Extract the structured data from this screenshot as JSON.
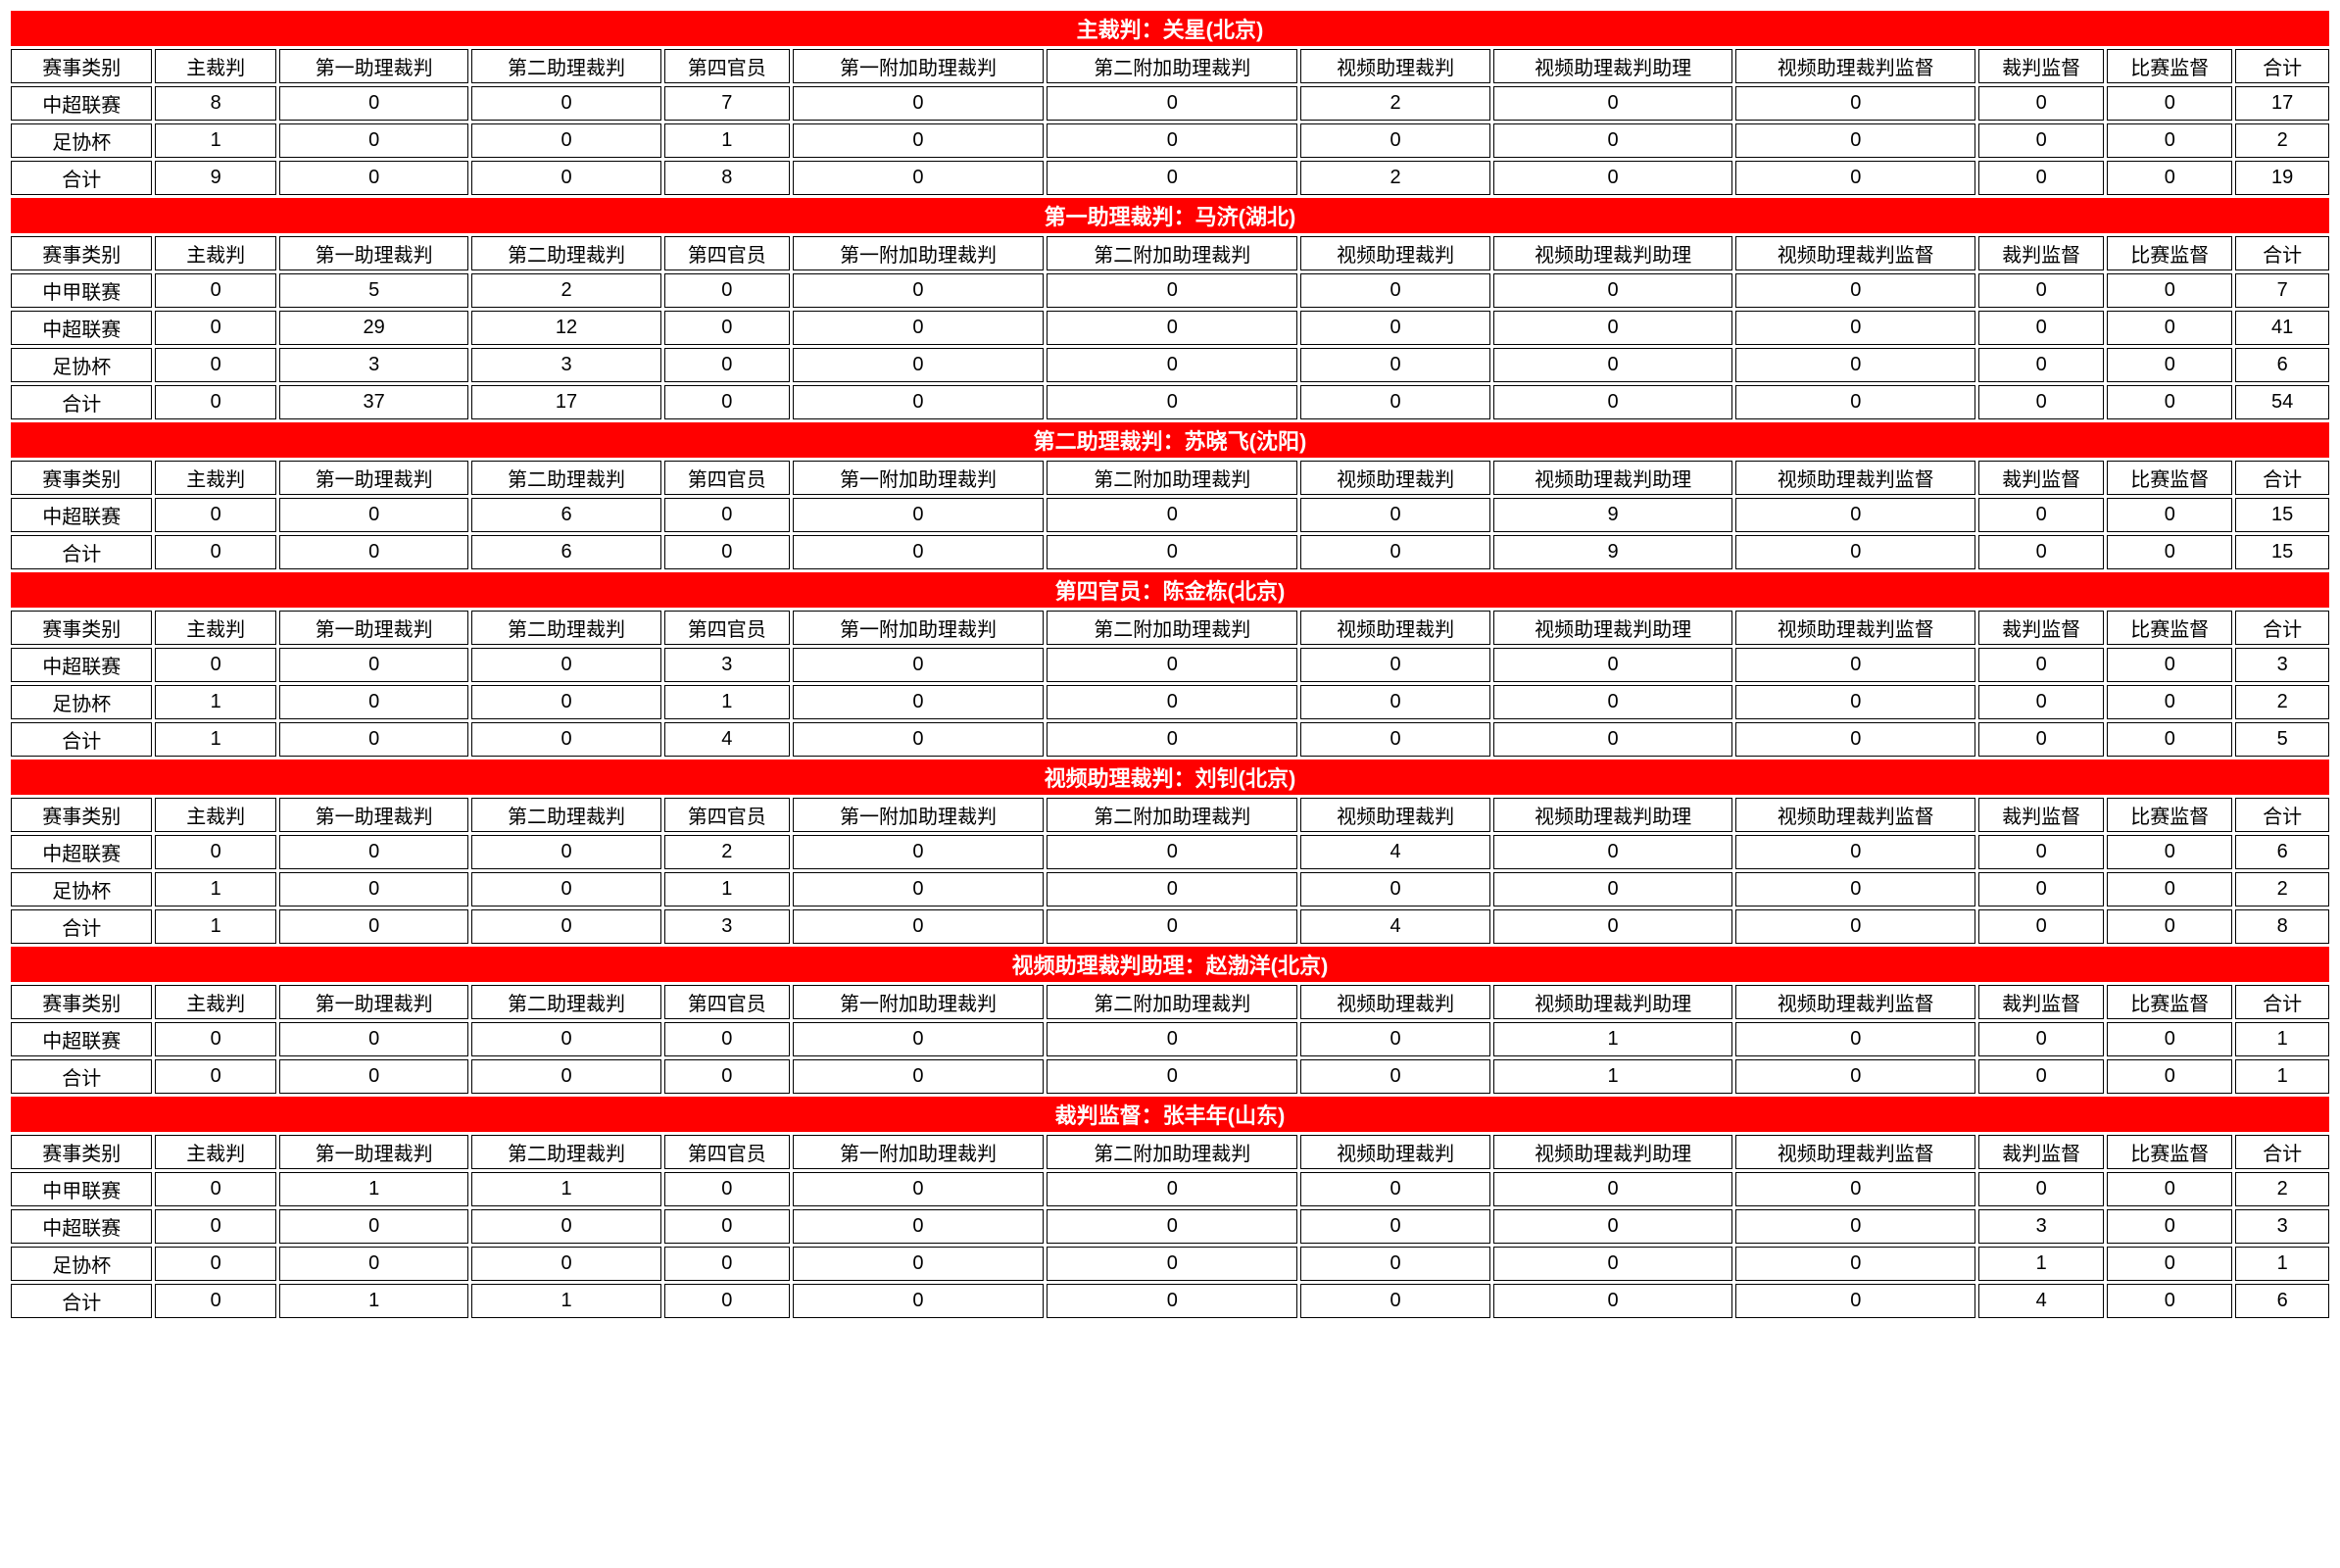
{
  "columns": [
    "赛事类别",
    "主裁判",
    "第一助理裁判",
    "第二助理裁判",
    "第四官员",
    "第一附加助理裁判",
    "第二附加助理裁判",
    "视频助理裁判",
    "视频助理裁判助理",
    "视频助理裁判监督",
    "裁判监督",
    "比赛监督",
    "合计"
  ],
  "colors": {
    "header_bg": "#ff0000",
    "header_text": "#ffffff",
    "cell_bg": "#ffffff",
    "border": "#000000"
  },
  "sections": [
    {
      "title": "主裁判：关星(北京)",
      "rows": [
        [
          "中超联赛",
          "8",
          "0",
          "0",
          "7",
          "0",
          "0",
          "2",
          "0",
          "0",
          "0",
          "0",
          "17"
        ],
        [
          "足协杯",
          "1",
          "0",
          "0",
          "1",
          "0",
          "0",
          "0",
          "0",
          "0",
          "0",
          "0",
          "2"
        ],
        [
          "合计",
          "9",
          "0",
          "0",
          "8",
          "0",
          "0",
          "2",
          "0",
          "0",
          "0",
          "0",
          "19"
        ]
      ]
    },
    {
      "title": "第一助理裁判：马济(湖北)",
      "rows": [
        [
          "中甲联赛",
          "0",
          "5",
          "2",
          "0",
          "0",
          "0",
          "0",
          "0",
          "0",
          "0",
          "0",
          "7"
        ],
        [
          "中超联赛",
          "0",
          "29",
          "12",
          "0",
          "0",
          "0",
          "0",
          "0",
          "0",
          "0",
          "0",
          "41"
        ],
        [
          "足协杯",
          "0",
          "3",
          "3",
          "0",
          "0",
          "0",
          "0",
          "0",
          "0",
          "0",
          "0",
          "6"
        ],
        [
          "合计",
          "0",
          "37",
          "17",
          "0",
          "0",
          "0",
          "0",
          "0",
          "0",
          "0",
          "0",
          "54"
        ]
      ]
    },
    {
      "title": "第二助理裁判：苏晓飞(沈阳)",
      "rows": [
        [
          "中超联赛",
          "0",
          "0",
          "6",
          "0",
          "0",
          "0",
          "0",
          "9",
          "0",
          "0",
          "0",
          "15"
        ],
        [
          "合计",
          "0",
          "0",
          "6",
          "0",
          "0",
          "0",
          "0",
          "9",
          "0",
          "0",
          "0",
          "15"
        ]
      ]
    },
    {
      "title": "第四官员：陈金栋(北京)",
      "rows": [
        [
          "中超联赛",
          "0",
          "0",
          "0",
          "3",
          "0",
          "0",
          "0",
          "0",
          "0",
          "0",
          "0",
          "3"
        ],
        [
          "足协杯",
          "1",
          "0",
          "0",
          "1",
          "0",
          "0",
          "0",
          "0",
          "0",
          "0",
          "0",
          "2"
        ],
        [
          "合计",
          "1",
          "0",
          "0",
          "4",
          "0",
          "0",
          "0",
          "0",
          "0",
          "0",
          "0",
          "5"
        ]
      ]
    },
    {
      "title": "视频助理裁判：刘钊(北京)",
      "rows": [
        [
          "中超联赛",
          "0",
          "0",
          "0",
          "2",
          "0",
          "0",
          "4",
          "0",
          "0",
          "0",
          "0",
          "6"
        ],
        [
          "足协杯",
          "1",
          "0",
          "0",
          "1",
          "0",
          "0",
          "0",
          "0",
          "0",
          "0",
          "0",
          "2"
        ],
        [
          "合计",
          "1",
          "0",
          "0",
          "3",
          "0",
          "0",
          "4",
          "0",
          "0",
          "0",
          "0",
          "8"
        ]
      ]
    },
    {
      "title": "视频助理裁判助理：赵渤洋(北京)",
      "rows": [
        [
          "中超联赛",
          "0",
          "0",
          "0",
          "0",
          "0",
          "0",
          "0",
          "1",
          "0",
          "0",
          "0",
          "1"
        ],
        [
          "合计",
          "0",
          "0",
          "0",
          "0",
          "0",
          "0",
          "0",
          "1",
          "0",
          "0",
          "0",
          "1"
        ]
      ]
    },
    {
      "title": "裁判监督：张丰年(山东)",
      "rows": [
        [
          "中甲联赛",
          "0",
          "1",
          "1",
          "0",
          "0",
          "0",
          "0",
          "0",
          "0",
          "0",
          "0",
          "2"
        ],
        [
          "中超联赛",
          "0",
          "0",
          "0",
          "0",
          "0",
          "0",
          "0",
          "0",
          "0",
          "3",
          "0",
          "3"
        ],
        [
          "足协杯",
          "0",
          "0",
          "0",
          "0",
          "0",
          "0",
          "0",
          "0",
          "0",
          "1",
          "0",
          "1"
        ],
        [
          "合计",
          "0",
          "1",
          "1",
          "0",
          "0",
          "0",
          "0",
          "0",
          "0",
          "4",
          "0",
          "6"
        ]
      ]
    }
  ]
}
